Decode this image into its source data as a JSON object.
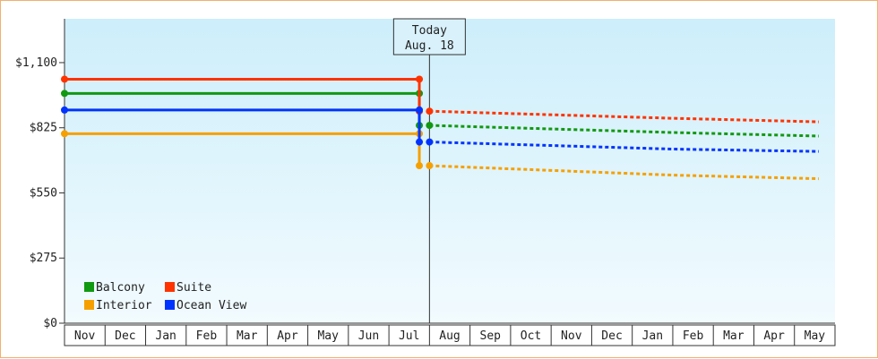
{
  "chart_data": {
    "type": "line",
    "title": "",
    "xlabel": "",
    "ylabel": "",
    "y_ticks": [
      "$0",
      "$275",
      "$550",
      "$825",
      "$1,100"
    ],
    "y_tick_values": [
      0,
      275,
      550,
      825,
      1100
    ],
    "ylim": [
      0,
      1285
    ],
    "months": [
      "Nov",
      "Dec",
      "Jan",
      "Feb",
      "Mar",
      "Apr",
      "May",
      "Jun",
      "Jul",
      "Aug",
      "Sep",
      "Oct",
      "Nov",
      "Dec",
      "Jan",
      "Feb",
      "Mar",
      "Apr",
      "May"
    ],
    "today": {
      "label_line1": "Today",
      "label_line2": "Aug. 18",
      "month_index": 9.0
    },
    "grid": false,
    "legend_position": "bottom-left",
    "legend": [
      {
        "name": "Balcony",
        "color": "#119911"
      },
      {
        "name": "Suite",
        "color": "#ff3300"
      },
      {
        "name": "Interior",
        "color": "#f5a000"
      },
      {
        "name": "Ocean View",
        "color": "#0033ff"
      }
    ],
    "series": [
      {
        "name": "Balcony",
        "color": "#119911",
        "history": [
          [
            0,
            970
          ],
          [
            8.75,
            970
          ],
          [
            8.75,
            835
          ]
        ],
        "history_points": [
          0,
          8.75
        ],
        "current": 835,
        "forecast": [
          [
            9.0,
            835
          ],
          [
            12,
            820
          ],
          [
            15,
            805
          ],
          [
            18.6,
            790
          ]
        ]
      },
      {
        "name": "Suite",
        "color": "#ff3300",
        "history": [
          [
            0,
            1030
          ],
          [
            8.75,
            1030
          ],
          [
            8.75,
            895
          ]
        ],
        "history_points": [
          0,
          8.75
        ],
        "current": 895,
        "forecast": [
          [
            9.0,
            895
          ],
          [
            12,
            880
          ],
          [
            15,
            865
          ],
          [
            18.6,
            850
          ]
        ]
      },
      {
        "name": "Interior",
        "color": "#f5a000",
        "history": [
          [
            0,
            800
          ],
          [
            8.75,
            800
          ],
          [
            8.75,
            665
          ]
        ],
        "history_points": [
          0,
          8.75
        ],
        "current": 665,
        "forecast": [
          [
            9.0,
            665
          ],
          [
            12,
            645
          ],
          [
            15,
            625
          ],
          [
            18.6,
            610
          ]
        ]
      },
      {
        "name": "Ocean View",
        "color": "#0033ff",
        "history": [
          [
            0,
            900
          ],
          [
            8.75,
            900
          ],
          [
            8.75,
            765
          ]
        ],
        "history_points": [
          0,
          8.75
        ],
        "current": 765,
        "forecast": [
          [
            9.0,
            765
          ],
          [
            12,
            750
          ],
          [
            15,
            735
          ],
          [
            18.6,
            725
          ]
        ]
      }
    ]
  }
}
